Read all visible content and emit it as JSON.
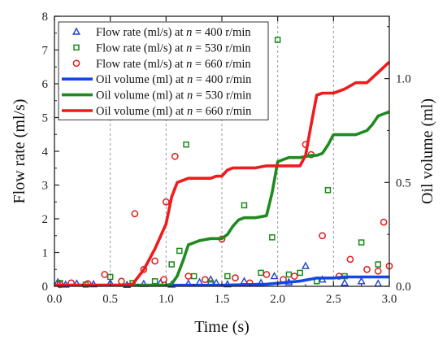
{
  "chart_data": {
    "type": "line",
    "xlabel": "Time (s)",
    "ylabel": "Flow rate (ml/s)",
    "y2label": "Oil volume (ml)",
    "xlim": [
      0,
      3
    ],
    "ylim": [
      0,
      8
    ],
    "y2lim": [
      0,
      1.3
    ],
    "xticks": [
      0.0,
      0.5,
      1.0,
      1.5,
      2.0,
      2.5,
      3.0
    ],
    "xtick_labels": [
      "0.0",
      "0.5",
      "1.0",
      "1.5",
      "2.0",
      "2.5",
      "3.0"
    ],
    "yticks": [
      0,
      1,
      2,
      3,
      4,
      5,
      6,
      7,
      8
    ],
    "ytick_labels": [
      "0",
      "1",
      "2",
      "3",
      "4",
      "5",
      "6",
      "7",
      "8"
    ],
    "y2ticks": [
      0.0,
      0.5,
      1.0
    ],
    "y2tick_labels": [
      "0.0",
      "0.5",
      "1.0"
    ],
    "grid": "vertical dashed at x ticks",
    "legend_position": "top-left",
    "series": [
      {
        "name": "Flow rate (ml/s) at n = 400 r/min",
        "name_parts": [
          "Flow rate (ml/s) at ",
          "n",
          " = 400 r/min"
        ],
        "kind": "scatter",
        "axis": "left",
        "marker": "triangle",
        "color": "#1f3fd1",
        "x": [
          0.03,
          0.1,
          0.2,
          0.35,
          0.5,
          0.65,
          0.8,
          0.95,
          1.05,
          1.2,
          1.3,
          1.4,
          1.45,
          1.55,
          1.7,
          1.85,
          1.97,
          2.1,
          2.25,
          2.4,
          2.6,
          2.75,
          2.9
        ],
        "y": [
          0.12,
          0.05,
          0.08,
          0.06,
          0.1,
          0.04,
          0.07,
          0.1,
          0.05,
          0.08,
          0.12,
          0.2,
          0.1,
          0.06,
          0.15,
          0.1,
          0.3,
          0.12,
          0.6,
          0.2,
          0.1,
          0.15,
          0.08
        ]
      },
      {
        "name": "Flow rate (ml/s) at n = 530 r/min",
        "name_parts": [
          "Flow rate (ml/s) at ",
          "n",
          " = 530 r/min"
        ],
        "kind": "scatter",
        "axis": "left",
        "marker": "square",
        "color": "#1a8a1a",
        "x": [
          0.05,
          0.28,
          0.5,
          0.7,
          0.9,
          1.05,
          1.12,
          1.18,
          1.25,
          1.4,
          1.55,
          1.7,
          1.85,
          1.95,
          2.0,
          2.1,
          2.2,
          2.35,
          2.45,
          2.6,
          2.75,
          2.9
        ],
        "y": [
          0.1,
          0.05,
          0.28,
          0.1,
          0.15,
          0.65,
          1.05,
          4.2,
          0.3,
          0.1,
          0.3,
          2.4,
          0.4,
          1.45,
          7.3,
          0.35,
          0.4,
          0.15,
          2.85,
          0.3,
          1.3,
          0.65
        ]
      },
      {
        "name": "Flow rate (ml/s) at n = 660 r/min",
        "name_parts": [
          "Flow rate (ml/s) at ",
          "n",
          " = 660 r/min"
        ],
        "kind": "scatter",
        "axis": "left",
        "marker": "circle",
        "color": "#e01b1b",
        "x": [
          0.05,
          0.15,
          0.3,
          0.45,
          0.6,
          0.72,
          0.8,
          0.9,
          0.98,
          1.0,
          1.08,
          1.2,
          1.35,
          1.5,
          1.62,
          1.75,
          1.9,
          2.05,
          2.15,
          2.25,
          2.3,
          2.4,
          2.55,
          2.65,
          2.8,
          2.9,
          2.95,
          3.0
        ],
        "y": [
          0.05,
          0.1,
          0.08,
          0.35,
          0.15,
          2.15,
          0.5,
          0.75,
          0.2,
          2.5,
          3.85,
          0.3,
          0.2,
          1.4,
          0.25,
          0.1,
          0.35,
          0.2,
          0.3,
          4.2,
          3.9,
          1.5,
          0.3,
          0.8,
          0.5,
          0.45,
          1.9,
          0.6
        ]
      },
      {
        "name": "Oil volume (ml) at n = 400 r/min",
        "name_parts": [
          "Oil volume (ml) at ",
          "n",
          " = 400 r/min"
        ],
        "kind": "line",
        "axis": "right",
        "color": "#1447e6",
        "x": [
          0.0,
          1.5,
          1.9,
          2.0,
          2.1,
          2.2,
          2.3,
          2.35,
          2.5,
          2.6,
          3.0
        ],
        "y": [
          0.005,
          0.005,
          0.01,
          0.015,
          0.02,
          0.025,
          0.035,
          0.04,
          0.04,
          0.045,
          0.045
        ]
      },
      {
        "name": "Oil volume (ml) at n = 530 r/min",
        "name_parts": [
          "Oil volume (ml) at ",
          "n",
          " = 530 r/min"
        ],
        "kind": "line",
        "axis": "right",
        "color": "#1f8a1f",
        "x": [
          0.0,
          1.0,
          1.05,
          1.1,
          1.15,
          1.2,
          1.3,
          1.4,
          1.5,
          1.55,
          1.6,
          1.65,
          1.7,
          1.8,
          1.9,
          1.95,
          2.0,
          2.05,
          2.1,
          2.2,
          2.3,
          2.35,
          2.4,
          2.45,
          2.5,
          2.55,
          2.6,
          2.7,
          2.8,
          2.85,
          2.9,
          2.95,
          3.0
        ],
        "y": [
          0.005,
          0.005,
          0.01,
          0.05,
          0.12,
          0.2,
          0.22,
          0.23,
          0.23,
          0.25,
          0.29,
          0.32,
          0.33,
          0.33,
          0.34,
          0.45,
          0.6,
          0.61,
          0.62,
          0.62,
          0.63,
          0.63,
          0.64,
          0.68,
          0.73,
          0.73,
          0.73,
          0.73,
          0.75,
          0.78,
          0.82,
          0.83,
          0.84
        ]
      },
      {
        "name": "Oil volume (ml) at n = 660 r/min",
        "name_parts": [
          "Oil volume (ml) at ",
          "n",
          " = 660 r/min"
        ],
        "kind": "line",
        "axis": "right",
        "color": "#ee1c1c",
        "x": [
          0.0,
          0.6,
          0.7,
          0.8,
          0.9,
          1.0,
          1.05,
          1.1,
          1.2,
          1.3,
          1.4,
          1.45,
          1.5,
          1.55,
          1.6,
          1.7,
          1.8,
          1.9,
          2.0,
          2.1,
          2.2,
          2.25,
          2.3,
          2.35,
          2.4,
          2.5,
          2.6,
          2.7,
          2.8,
          2.9,
          3.0
        ],
        "y": [
          0.005,
          0.005,
          0.01,
          0.08,
          0.18,
          0.3,
          0.43,
          0.5,
          0.52,
          0.52,
          0.52,
          0.53,
          0.53,
          0.56,
          0.57,
          0.57,
          0.57,
          0.58,
          0.58,
          0.58,
          0.58,
          0.63,
          0.78,
          0.92,
          0.93,
          0.93,
          0.95,
          0.98,
          0.98,
          1.03,
          1.08
        ]
      }
    ]
  }
}
